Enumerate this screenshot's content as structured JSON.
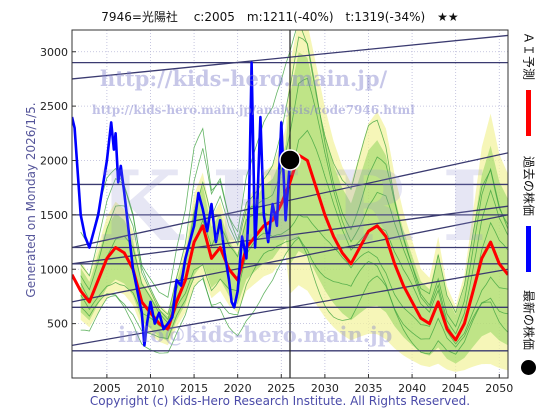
{
  "header": {
    "title": "7946=光陽社　 c:2005　m:1211(-40%)　t:1319(-34%)　★★"
  },
  "side_label": "Generated on Monday 2026/1/5.",
  "footer": "Copyright (c) Kids-Hero Research Institute. All Rights Reserved.",
  "watermarks": {
    "url_main": "http://kids-hero.main.jp/",
    "url_analysis": "http://kids-hero.main.jp/analysis/code7946.html",
    "logo": "KHRI",
    "email": "info@kids-hero.main.jp"
  },
  "legend": {
    "ai_forecast": "ＡＩ予測",
    "past_price": "過去の株価",
    "latest_price": "最新の株価"
  },
  "colors": {
    "ai_forecast": "#ff0000",
    "past_price": "#0000ff",
    "latest_price": "#000000",
    "channel_lines": "#3a3a70",
    "band_green": "#7ccf4c",
    "band_yellow": "#f3f3a0"
  },
  "chart_data": {
    "type": "line",
    "x_ticks": [
      2005,
      2010,
      2015,
      2020,
      2025,
      2030,
      2035,
      2040,
      2045,
      2050
    ],
    "y_ticks": [
      500,
      1000,
      1500,
      2000,
      2500,
      3000
    ],
    "xlim": [
      2001,
      2051
    ],
    "ylim": [
      0,
      3200
    ],
    "grid": true,
    "latest_point": {
      "x": 2026.0,
      "y": 2005
    },
    "horizontal_levels": [
      250,
      650,
      1050,
      1200,
      1500,
      1780,
      2900
    ],
    "trend_lines": [
      {
        "x": [
          2001,
          2051
        ],
        "y": [
          300,
          1000
        ]
      },
      {
        "x": [
          2001,
          2051
        ],
        "y": [
          700,
          1500
        ]
      },
      {
        "x": [
          2001,
          2051
        ],
        "y": [
          1050,
          1580
        ]
      },
      {
        "x": [
          2001,
          2051
        ],
        "y": [
          1200,
          2070
        ]
      },
      {
        "x": [
          2001,
          2051
        ],
        "y": [
          2750,
          3150
        ]
      }
    ],
    "series": [
      {
        "name": "過去の株価",
        "x": [
          2001,
          2001.3,
          2002,
          2002.5,
          2003,
          2003.5,
          2004,
          2004.5,
          2005,
          2005.5,
          2005.8,
          2006,
          2006.3,
          2006.6,
          2007,
          2007.5,
          2008,
          2008.5,
          2009,
          2009.3,
          2009.6,
          2010,
          2010.5,
          2011,
          2011.5,
          2012,
          2012.5,
          2013,
          2013.5,
          2014,
          2014.5,
          2015,
          2015.5,
          2016,
          2016.5,
          2017,
          2017.5,
          2018,
          2018.5,
          2019,
          2019.3,
          2019.6,
          2020,
          2020.5,
          2021,
          2021.3,
          2021.6,
          2022,
          2022.3,
          2022.6,
          2023,
          2023.5,
          2024,
          2024.5,
          2025,
          2025.5,
          2026
        ],
        "y": [
          2400,
          2300,
          1500,
          1300,
          1200,
          1350,
          1500,
          1750,
          2000,
          2350,
          2100,
          2250,
          1800,
          1950,
          1700,
          1350,
          1000,
          800,
          600,
          300,
          500,
          700,
          500,
          600,
          450,
          500,
          560,
          900,
          850,
          1100,
          1250,
          1400,
          1700,
          1550,
          1350,
          1600,
          1250,
          1450,
          1150,
          900,
          700,
          650,
          800,
          1300,
          1100,
          1600,
          2900,
          1200,
          1700,
          2400,
          1500,
          1250,
          1600,
          1400,
          2350,
          1450,
          2005
        ]
      },
      {
        "name": "ＡＩ予測",
        "x": [
          2001,
          2002,
          2003,
          2004,
          2005,
          2006,
          2007,
          2008,
          2009,
          2010,
          2011,
          2012,
          2013,
          2014,
          2015,
          2016,
          2017,
          2018,
          2019,
          2020,
          2021,
          2022,
          2023,
          2024,
          2025,
          2026,
          2027,
          2028,
          2029,
          2030,
          2031,
          2032,
          2033,
          2034,
          2035,
          2036,
          2037,
          2038,
          2039,
          2040,
          2041,
          2042,
          2043,
          2044,
          2045,
          2046,
          2047,
          2048,
          2049,
          2050,
          2051
        ],
        "y": [
          950,
          800,
          700,
          900,
          1100,
          1200,
          1150,
          1000,
          700,
          600,
          500,
          450,
          700,
          900,
          1250,
          1400,
          1100,
          1200,
          1000,
          900,
          1200,
          1300,
          1400,
          1450,
          1600,
          1800,
          2050,
          2000,
          1750,
          1500,
          1300,
          1150,
          1050,
          1200,
          1350,
          1400,
          1300,
          1050,
          850,
          700,
          550,
          500,
          700,
          450,
          350,
          500,
          800,
          1100,
          1250,
          1050,
          950
        ]
      }
    ]
  }
}
